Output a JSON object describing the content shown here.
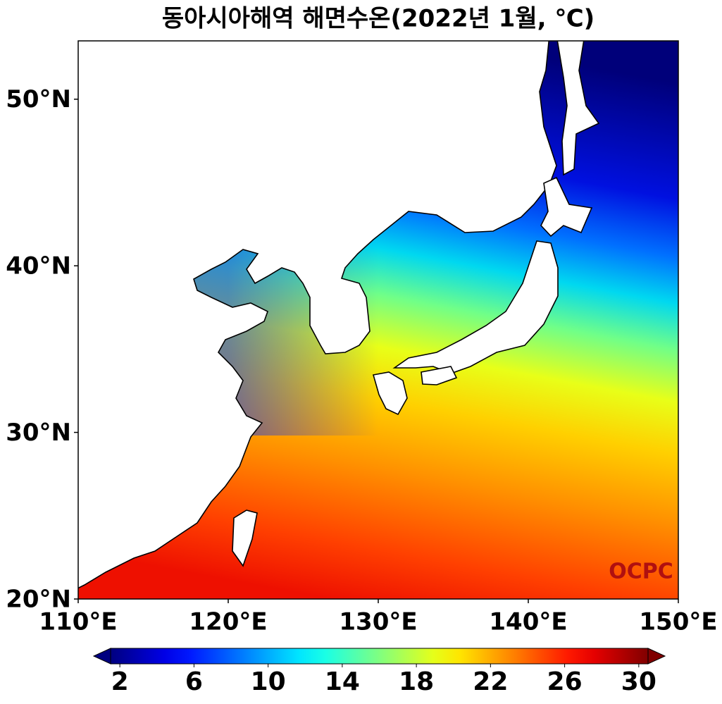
{
  "chart_data": {
    "type": "map",
    "title": "동아시아해역 해면수온(2022년 1월, ℃)",
    "xlim": [
      110,
      150
    ],
    "ylim": [
      20,
      53.5
    ],
    "xticks": [
      {
        "value": 110,
        "label": "110°E"
      },
      {
        "value": 120,
        "label": "120°E"
      },
      {
        "value": 130,
        "label": "130°E"
      },
      {
        "value": 140,
        "label": "140°E"
      },
      {
        "value": 150,
        "label": "150°E"
      }
    ],
    "yticks": [
      {
        "value": 20,
        "label": "20°N"
      },
      {
        "value": 30,
        "label": "30°N"
      },
      {
        "value": 40,
        "label": "40°N"
      },
      {
        "value": 50,
        "label": "50°N"
      }
    ],
    "colorbar": {
      "colormap": "jet",
      "lim": [
        1.5,
        30.5
      ],
      "ticks": [
        2,
        6,
        10,
        14,
        18,
        22,
        26,
        30
      ],
      "extend": "both"
    },
    "logo": "OCPC"
  }
}
